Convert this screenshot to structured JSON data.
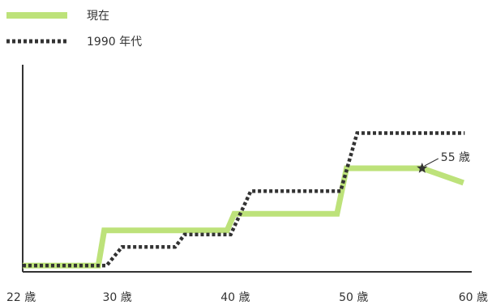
{
  "chart_data": {
    "type": "line",
    "title": "",
    "xlabel": "",
    "ylabel": "",
    "x_ticks": [
      {
        "value": 22,
        "label": "22 歳"
      },
      {
        "value": 30,
        "label": "30 歳"
      },
      {
        "value": 40,
        "label": "40 歳"
      },
      {
        "value": 50,
        "label": "50 歳"
      },
      {
        "value": 60,
        "label": "60 歳"
      }
    ],
    "xlim": [
      22,
      60
    ],
    "ylim": [
      0,
      100
    ],
    "y_ticks_shown": false,
    "grid": false,
    "legend_position": "top-left",
    "series": [
      {
        "name": "現在",
        "style": "solid",
        "color": "#bde27a",
        "points": [
          {
            "x": 22,
            "y": 3
          },
          {
            "x": 28.4,
            "y": 3
          },
          {
            "x": 28.9,
            "y": 20
          },
          {
            "x": 39.3,
            "y": 20
          },
          {
            "x": 39.9,
            "y": 28
          },
          {
            "x": 48.6,
            "y": 28
          },
          {
            "x": 49.4,
            "y": 50
          },
          {
            "x": 55.8,
            "y": 50
          },
          {
            "x": 59.3,
            "y": 43
          }
        ]
      },
      {
        "name": "1990 年代",
        "style": "dotted",
        "color": "#333333",
        "points": [
          {
            "x": 22,
            "y": 3
          },
          {
            "x": 29.1,
            "y": 3
          },
          {
            "x": 30.4,
            "y": 12
          },
          {
            "x": 34.9,
            "y": 12
          },
          {
            "x": 35.7,
            "y": 18
          },
          {
            "x": 39.6,
            "y": 18
          },
          {
            "x": 41.3,
            "y": 39
          },
          {
            "x": 48.9,
            "y": 39
          },
          {
            "x": 50.3,
            "y": 67
          },
          {
            "x": 59.4,
            "y": 67
          }
        ]
      }
    ],
    "annotations": [
      {
        "text": "55 歳",
        "x": 55.8,
        "y": 50,
        "marker": "star"
      }
    ]
  }
}
